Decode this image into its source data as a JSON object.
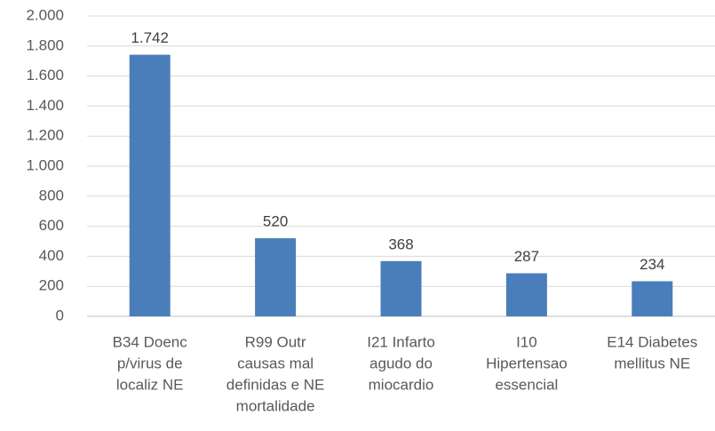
{
  "chart_data": {
    "type": "bar",
    "categories": [
      [
        "B34 Doenc",
        "p/virus de",
        "localiz NE"
      ],
      [
        "R99 Outr",
        "causas mal",
        "definidas e NE",
        "mortalidade"
      ],
      [
        "I21 Infarto",
        "agudo do",
        "miocardio"
      ],
      [
        "I10",
        "Hipertensao",
        "essencial"
      ],
      [
        "E14 Diabetes",
        "mellitus NE"
      ]
    ],
    "values": [
      1742,
      520,
      368,
      287,
      234
    ],
    "value_labels": [
      "1.742",
      "520",
      "368",
      "287",
      "234"
    ],
    "color": "#4a7ebb",
    "ylim": [
      0,
      2000
    ],
    "yticks": [
      0,
      200,
      400,
      600,
      800,
      {
        "value": 1000,
        "label": "1.000"
      },
      {
        "value": 1200,
        "label": "1.200"
      },
      {
        "value": 1400,
        "label": "1.400"
      },
      {
        "value": 1600,
        "label": "1.600"
      },
      {
        "value": 1800,
        "label": "1.800"
      },
      {
        "value": 2000,
        "label": "2.000"
      }
    ],
    "grid": true
  }
}
